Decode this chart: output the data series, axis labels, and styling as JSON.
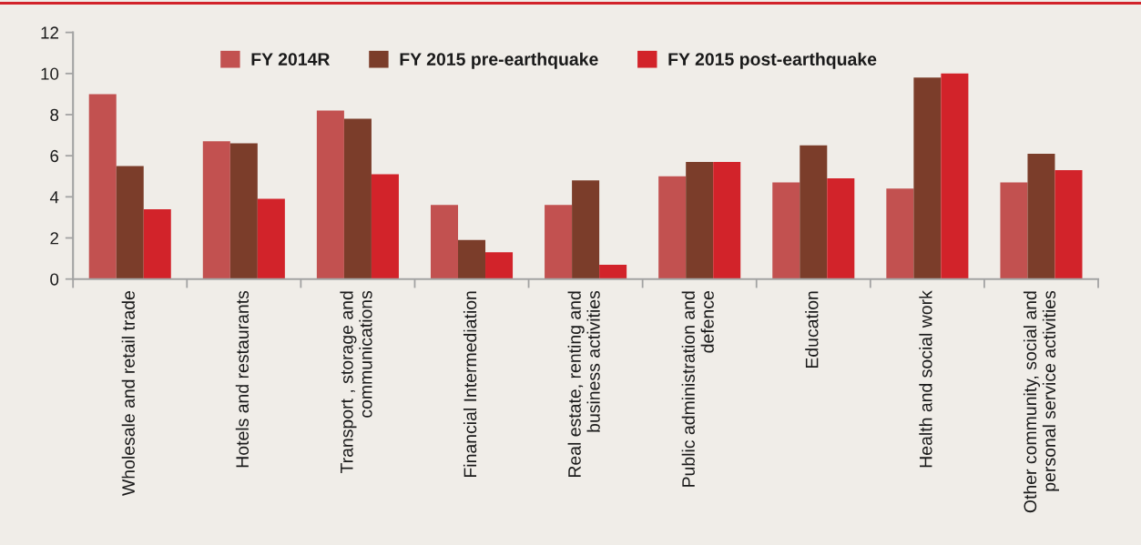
{
  "chart_data": {
    "type": "bar",
    "categories": [
      "Wholesale and retail trade",
      "Hotels and restaurants",
      "Transport , storage and communications",
      "Financial Intermediation",
      "Real estate, renting and business activities",
      "Public administration and defence",
      "Education",
      "Health and social work",
      "Other community, social and personal service activities"
    ],
    "series": [
      {
        "name": "FY 2014R",
        "color": "#c25150",
        "values": [
          9.0,
          6.7,
          8.2,
          3.6,
          3.6,
          5.0,
          4.7,
          4.4,
          4.7
        ]
      },
      {
        "name": "FY 2015 pre-earthquake",
        "color": "#7b3d2a",
        "values": [
          5.5,
          6.6,
          7.8,
          1.9,
          4.8,
          5.7,
          6.5,
          9.8,
          6.1
        ]
      },
      {
        "name": "FY 2015 post-earthquake",
        "color": "#d2232a",
        "values": [
          3.4,
          3.9,
          5.1,
          1.3,
          0.7,
          5.7,
          4.9,
          10.0,
          5.3
        ]
      }
    ],
    "ylim": [
      0,
      12
    ],
    "yticks": [
      0,
      2,
      4,
      6,
      8,
      10,
      12
    ],
    "legend": "top",
    "grid": false
  }
}
